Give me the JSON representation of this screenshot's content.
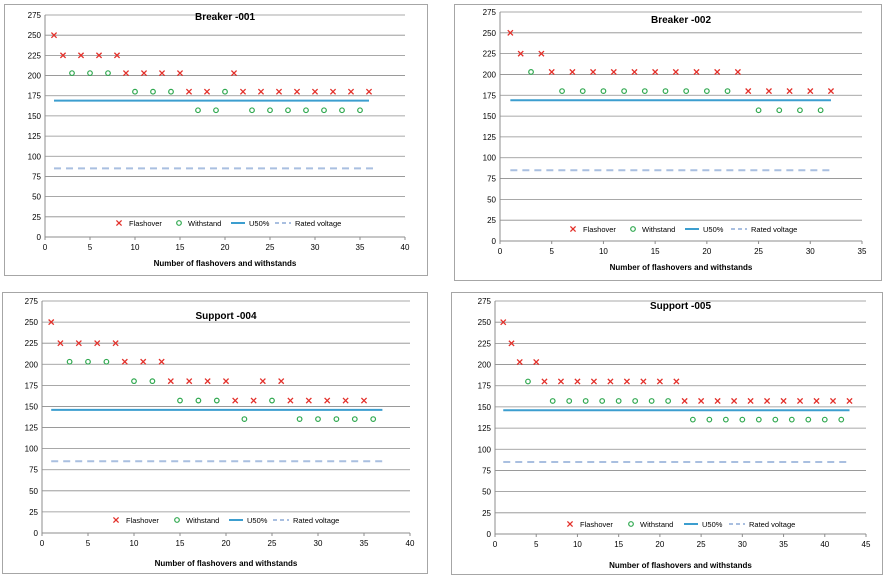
{
  "colors": {
    "flashover": "#e3302a",
    "withstand": "#2fa84f",
    "u50": "#3c9ecf",
    "rated": "#a9bfe0",
    "grid": "#8c8c8c"
  },
  "legend": {
    "flashover": "Flashover",
    "withstand": "Withstand",
    "u50": "U50%",
    "rated": "Rated voltage"
  },
  "chart_data": [
    {
      "type": "scatter",
      "title": "Breaker -001",
      "xlabel": "Number of flashovers and withstands",
      "ylabel": "",
      "xlim": [
        0,
        40
      ],
      "ylim": [
        0,
        275
      ],
      "xticks": [
        0,
        5,
        10,
        15,
        20,
        25,
        30,
        35,
        40
      ],
      "yticks": [
        0,
        25,
        50,
        75,
        100,
        125,
        150,
        175,
        200,
        225,
        250,
        275
      ],
      "grid": "horizontal",
      "legend_position": "bottom",
      "flashover": [
        [
          1,
          250
        ],
        [
          2,
          225
        ],
        [
          4,
          225
        ],
        [
          6,
          225
        ],
        [
          8,
          225
        ],
        [
          9,
          203
        ],
        [
          11,
          203
        ],
        [
          13,
          203
        ],
        [
          15,
          203
        ],
        [
          16,
          180
        ],
        [
          18,
          180
        ],
        [
          21,
          203
        ],
        [
          22,
          180
        ],
        [
          24,
          180
        ],
        [
          26,
          180
        ],
        [
          28,
          180
        ],
        [
          30,
          180
        ],
        [
          32,
          180
        ],
        [
          34,
          180
        ],
        [
          36,
          180
        ]
      ],
      "withstand": [
        [
          3,
          203
        ],
        [
          5,
          203
        ],
        [
          7,
          203
        ],
        [
          10,
          180
        ],
        [
          12,
          180
        ],
        [
          14,
          180
        ],
        [
          17,
          157
        ],
        [
          19,
          157
        ],
        [
          20,
          180
        ],
        [
          23,
          157
        ],
        [
          25,
          157
        ],
        [
          27,
          157
        ],
        [
          29,
          157
        ],
        [
          31,
          157
        ],
        [
          33,
          157
        ],
        [
          35,
          157
        ]
      ],
      "u50": {
        "x": [
          1,
          36
        ],
        "y": 169
      },
      "rated": {
        "x": [
          1,
          37
        ],
        "y": 85
      }
    },
    {
      "type": "scatter",
      "title": "Breaker -002",
      "xlabel": "Number of flashovers and withstands",
      "ylabel": "",
      "xlim": [
        0,
        35
      ],
      "ylim": [
        0,
        275
      ],
      "xticks": [
        0,
        5,
        10,
        15,
        20,
        25,
        30,
        35
      ],
      "yticks": [
        0,
        25,
        50,
        75,
        100,
        125,
        150,
        175,
        200,
        225,
        250,
        275
      ],
      "grid": "horizontal",
      "legend_position": "bottom",
      "flashover": [
        [
          1,
          250
        ],
        [
          2,
          225
        ],
        [
          4,
          225
        ],
        [
          5,
          203
        ],
        [
          7,
          203
        ],
        [
          9,
          203
        ],
        [
          11,
          203
        ],
        [
          13,
          203
        ],
        [
          15,
          203
        ],
        [
          17,
          203
        ],
        [
          19,
          203
        ],
        [
          21,
          203
        ],
        [
          23,
          203
        ],
        [
          24,
          180
        ],
        [
          26,
          180
        ],
        [
          28,
          180
        ],
        [
          30,
          180
        ],
        [
          32,
          180
        ]
      ],
      "withstand": [
        [
          3,
          203
        ],
        [
          6,
          180
        ],
        [
          8,
          180
        ],
        [
          10,
          180
        ],
        [
          12,
          180
        ],
        [
          14,
          180
        ],
        [
          16,
          180
        ],
        [
          18,
          180
        ],
        [
          20,
          180
        ],
        [
          22,
          180
        ],
        [
          25,
          157
        ],
        [
          27,
          157
        ],
        [
          29,
          157
        ],
        [
          31,
          157
        ]
      ],
      "u50": {
        "x": [
          1,
          32
        ],
        "y": 169
      },
      "rated": {
        "x": [
          1,
          32
        ],
        "y": 85
      }
    },
    {
      "type": "scatter",
      "title": "Support -004",
      "xlabel": "Number of flashovers and withstands",
      "ylabel": "",
      "xlim": [
        0,
        40
      ],
      "ylim": [
        0,
        275
      ],
      "xticks": [
        0,
        5,
        10,
        15,
        20,
        25,
        30,
        35,
        40
      ],
      "yticks": [
        0,
        25,
        50,
        75,
        100,
        125,
        150,
        175,
        200,
        225,
        250,
        275
      ],
      "grid": "horizontal",
      "legend_position": "bottom",
      "flashover": [
        [
          1,
          250
        ],
        [
          2,
          225
        ],
        [
          4,
          225
        ],
        [
          6,
          225
        ],
        [
          8,
          225
        ],
        [
          9,
          203
        ],
        [
          11,
          203
        ],
        [
          13,
          203
        ],
        [
          14,
          180
        ],
        [
          16,
          180
        ],
        [
          18,
          180
        ],
        [
          20,
          180
        ],
        [
          21,
          157
        ],
        [
          23,
          157
        ],
        [
          24,
          180
        ],
        [
          26,
          180
        ],
        [
          27,
          157
        ],
        [
          29,
          157
        ],
        [
          31,
          157
        ],
        [
          33,
          157
        ],
        [
          35,
          157
        ]
      ],
      "withstand": [
        [
          3,
          203
        ],
        [
          5,
          203
        ],
        [
          7,
          203
        ],
        [
          10,
          180
        ],
        [
          12,
          180
        ],
        [
          15,
          157
        ],
        [
          17,
          157
        ],
        [
          19,
          157
        ],
        [
          22,
          135
        ],
        [
          25,
          157
        ],
        [
          28,
          135
        ],
        [
          30,
          135
        ],
        [
          32,
          135
        ],
        [
          34,
          135
        ],
        [
          36,
          135
        ]
      ],
      "u50": {
        "x": [
          1,
          37
        ],
        "y": 146
      },
      "rated": {
        "x": [
          1,
          37
        ],
        "y": 85
      }
    },
    {
      "type": "scatter",
      "title": "Support -005",
      "xlabel": "Number of flashovers and withstands",
      "ylabel": "",
      "xlim": [
        0,
        45
      ],
      "ylim": [
        0,
        275
      ],
      "xticks": [
        0,
        5,
        10,
        15,
        20,
        25,
        30,
        35,
        40,
        45
      ],
      "yticks": [
        0,
        25,
        50,
        75,
        100,
        125,
        150,
        175,
        200,
        225,
        250,
        275
      ],
      "grid": "horizontal",
      "legend_position": "bottom",
      "flashover": [
        [
          1,
          250
        ],
        [
          2,
          225
        ],
        [
          3,
          203
        ],
        [
          5,
          203
        ],
        [
          6,
          180
        ],
        [
          8,
          180
        ],
        [
          10,
          180
        ],
        [
          12,
          180
        ],
        [
          14,
          180
        ],
        [
          16,
          180
        ],
        [
          18,
          180
        ],
        [
          20,
          180
        ],
        [
          22,
          180
        ],
        [
          23,
          157
        ],
        [
          25,
          157
        ],
        [
          27,
          157
        ],
        [
          29,
          157
        ],
        [
          31,
          157
        ],
        [
          33,
          157
        ],
        [
          35,
          157
        ],
        [
          37,
          157
        ],
        [
          39,
          157
        ],
        [
          41,
          157
        ],
        [
          43,
          157
        ]
      ],
      "withstand": [
        [
          4,
          180
        ],
        [
          7,
          157
        ],
        [
          9,
          157
        ],
        [
          11,
          157
        ],
        [
          13,
          157
        ],
        [
          15,
          157
        ],
        [
          17,
          157
        ],
        [
          19,
          157
        ],
        [
          21,
          157
        ],
        [
          24,
          135
        ],
        [
          26,
          135
        ],
        [
          28,
          135
        ],
        [
          30,
          135
        ],
        [
          32,
          135
        ],
        [
          34,
          135
        ],
        [
          36,
          135
        ],
        [
          38,
          135
        ],
        [
          40,
          135
        ],
        [
          42,
          135
        ]
      ],
      "u50": {
        "x": [
          1,
          43
        ],
        "y": 146
      },
      "rated": {
        "x": [
          1,
          43
        ],
        "y": 85
      }
    }
  ]
}
